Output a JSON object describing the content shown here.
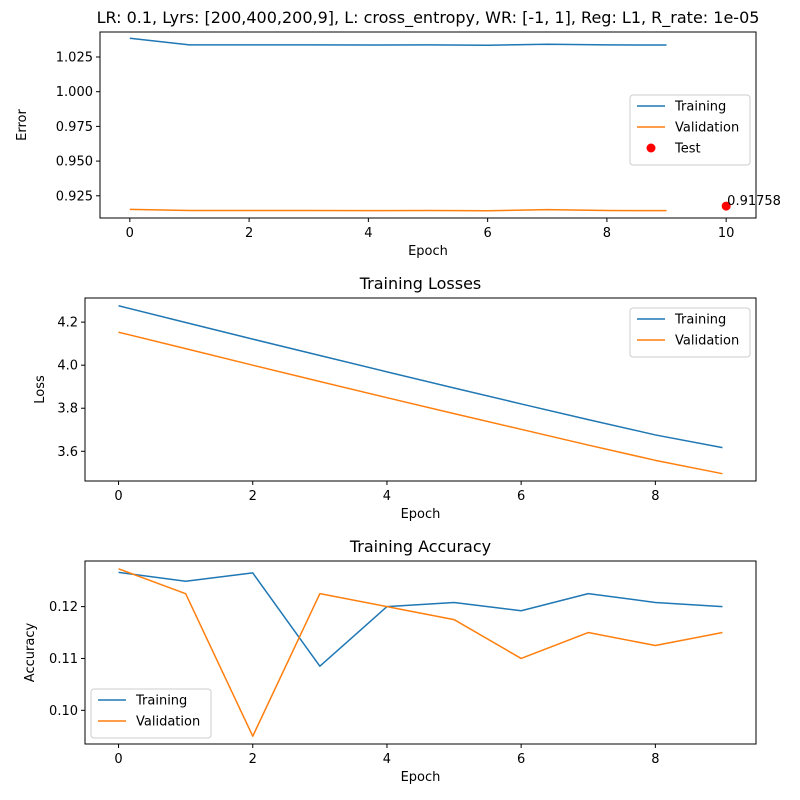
{
  "chart_data": [
    {
      "type": "line",
      "title": "LR: 0.1, Lyrs: [200,400,200,9], L: cross_entropy, WR: [-1, 1], Reg: L1, R_rate: 1e-05",
      "xlabel": "Epoch",
      "ylabel": "Error",
      "xlim": [
        -0.5,
        10.5
      ],
      "ylim": [
        0.909,
        1.043
      ],
      "xticks": [
        0,
        2,
        4,
        6,
        8,
        10
      ],
      "yticks": [
        0.925,
        0.95,
        0.975,
        1.0,
        1.025
      ],
      "ytick_labels": [
        "0.925",
        "0.950",
        "0.975",
        "1.000",
        "1.025"
      ],
      "legend_position": "center-right",
      "series": [
        {
          "name": "Training",
          "color": "#1f77b4",
          "x": [
            0,
            1,
            2,
            3,
            4,
            5,
            6,
            7,
            8,
            9
          ],
          "values": [
            1.0385,
            1.0337,
            1.0337,
            1.0337,
            1.0336,
            1.0337,
            1.0335,
            1.0342,
            1.0337,
            1.0336
          ]
        },
        {
          "name": "Validation",
          "color": "#ff7f0e",
          "x": [
            0,
            1,
            2,
            3,
            4,
            5,
            6,
            7,
            8,
            9
          ],
          "values": [
            0.9152,
            0.9144,
            0.9144,
            0.9144,
            0.9143,
            0.9144,
            0.9142,
            0.915,
            0.9144,
            0.9143
          ]
        }
      ],
      "points": [
        {
          "name": "Test",
          "color": "#ff0000",
          "x": 10,
          "y": 0.91758,
          "label": "0.91758"
        }
      ]
    },
    {
      "type": "line",
      "title": "Training Losses",
      "xlabel": "Epoch",
      "ylabel": "Loss",
      "xlim": [
        -0.5,
        9.5
      ],
      "ylim": [
        3.462,
        4.312
      ],
      "xticks": [
        0,
        2,
        4,
        6,
        8
      ],
      "yticks": [
        3.6,
        3.8,
        4.0,
        4.2
      ],
      "ytick_labels": [
        "3.6",
        "3.8",
        "4.0",
        "4.2"
      ],
      "legend_position": "top-right",
      "series": [
        {
          "name": "Training",
          "color": "#1f77b4",
          "x": [
            0,
            1,
            2,
            3,
            4,
            5,
            6,
            7,
            8,
            9
          ],
          "values": [
            4.276,
            4.198,
            4.121,
            4.045,
            3.969,
            3.894,
            3.82,
            3.747,
            3.676,
            3.617
          ]
        },
        {
          "name": "Validation",
          "color": "#ff7f0e",
          "x": [
            0,
            1,
            2,
            3,
            4,
            5,
            6,
            7,
            8,
            9
          ],
          "values": [
            4.153,
            4.077,
            4.0,
            3.924,
            3.849,
            3.775,
            3.702,
            3.629,
            3.558,
            3.496
          ]
        }
      ]
    },
    {
      "type": "line",
      "title": "Training Accuracy",
      "xlabel": "Epoch",
      "ylabel": "Accuracy",
      "xlim": [
        -0.5,
        9.5
      ],
      "ylim": [
        0.0935,
        0.1288
      ],
      "xticks": [
        0,
        2,
        4,
        6,
        8
      ],
      "yticks": [
        0.1,
        0.11,
        0.12
      ],
      "ytick_labels": [
        "0.10",
        "0.11",
        "0.12"
      ],
      "legend_position": "bottom-left",
      "series": [
        {
          "name": "Training",
          "color": "#1f77b4",
          "x": [
            0,
            1,
            2,
            3,
            4,
            5,
            6,
            7,
            8,
            9
          ],
          "values": [
            0.1266,
            0.1249,
            0.1265,
            0.1085,
            0.12,
            0.1208,
            0.1192,
            0.1225,
            0.1208,
            0.12
          ]
        },
        {
          "name": "Validation",
          "color": "#ff7f0e",
          "x": [
            0,
            1,
            2,
            3,
            4,
            5,
            6,
            7,
            8,
            9
          ],
          "values": [
            0.1273,
            0.1225,
            0.095,
            0.1225,
            0.12,
            0.1175,
            0.11,
            0.115,
            0.1125,
            0.115
          ]
        }
      ]
    }
  ]
}
